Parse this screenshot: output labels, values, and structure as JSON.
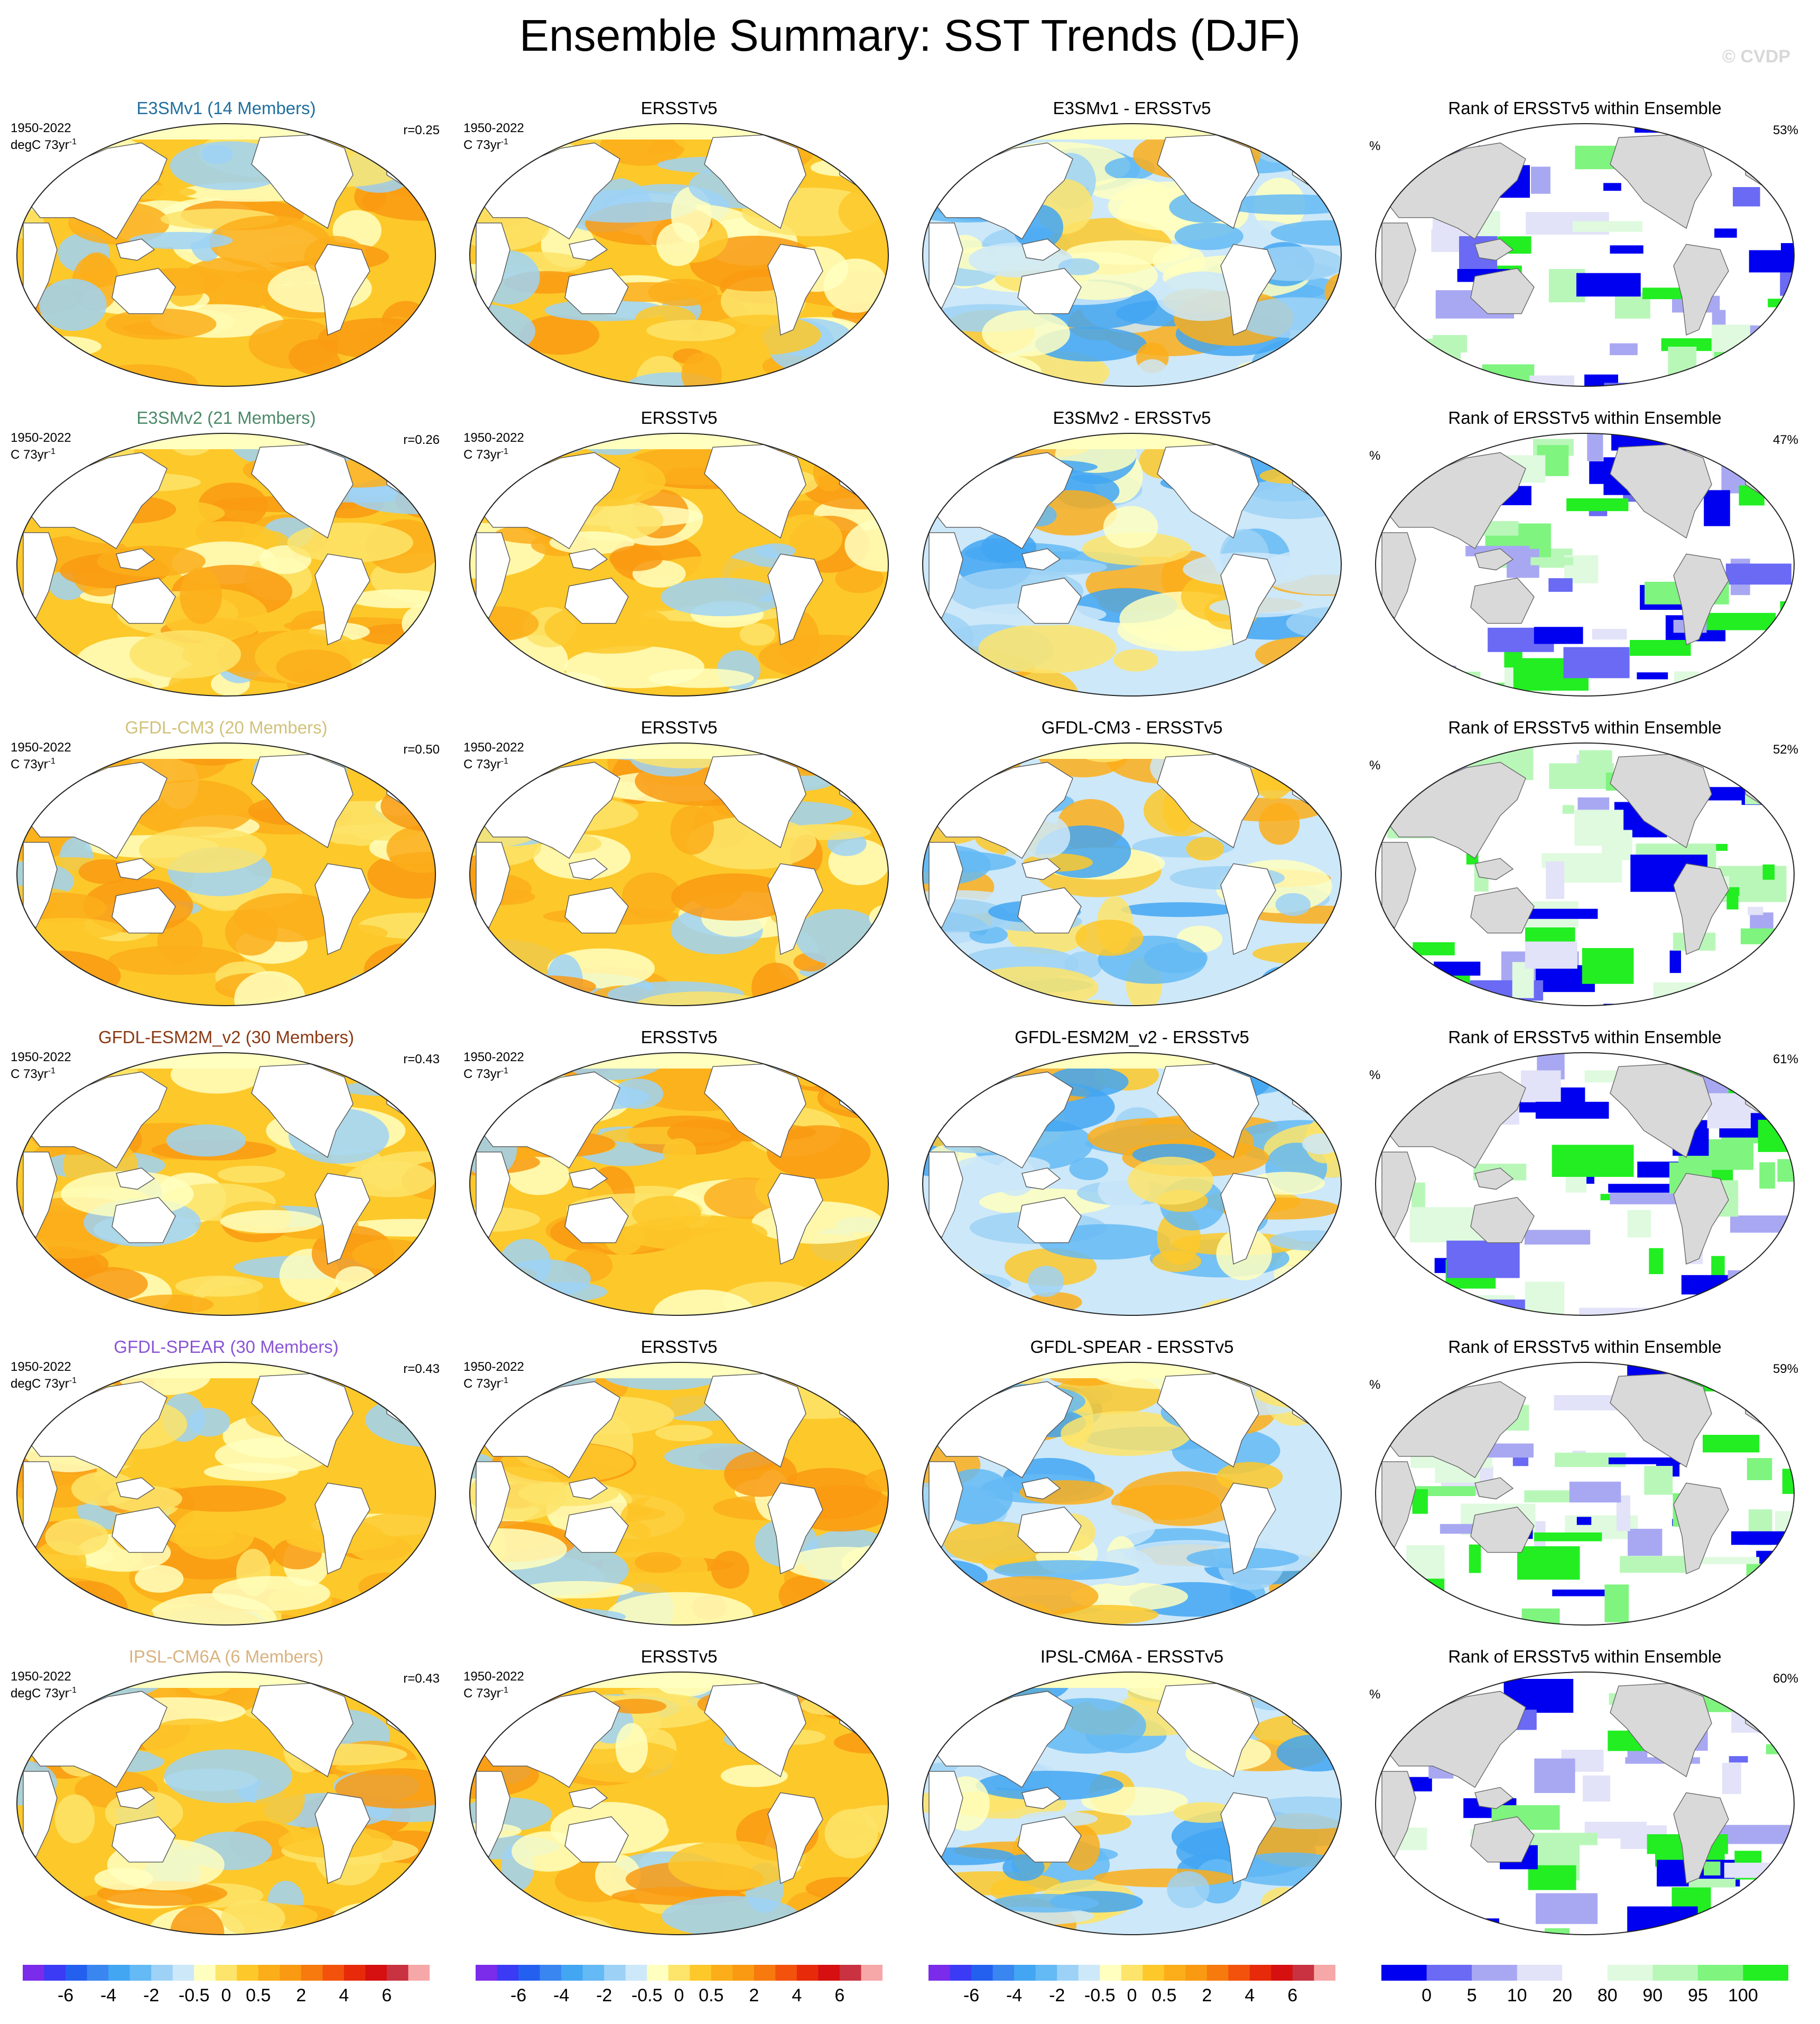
{
  "title": "Ensemble Summary: SST Trends (DJF)",
  "credit": "© CVDP",
  "colors": {
    "diverging": [
      "#7b2bea",
      "#3b3bf5",
      "#2460f0",
      "#3a86f0",
      "#42a6f2",
      "#64baf4",
      "#9dd2f6",
      "#cde8f9",
      "#ffffc0",
      "#fde46a",
      "#fdc82a",
      "#fbae1a",
      "#f99a12",
      "#f67a0e",
      "#f2520c",
      "#e62a0a",
      "#d61010",
      "#c93240",
      "#f6a7a7"
    ],
    "rank": [
      "#0000f0",
      "#6a6af5",
      "#a8a8f2",
      "#e2e2f8",
      "#ffffff",
      "#dffadf",
      "#b9f7b9",
      "#7ff47f",
      "#22ee22"
    ],
    "land": "#d9d9d9"
  },
  "colorbars": [
    {
      "labels": [
        "-6",
        "-4",
        "-2",
        "-0.5",
        "0",
        "0.5",
        "2",
        "4",
        "6"
      ]
    },
    {
      "labels": [
        "-6",
        "-4",
        "-2",
        "-0.5",
        "0",
        "0.5",
        "2",
        "4",
        "6"
      ]
    },
    {
      "labels": [
        "-6",
        "-4",
        "-2",
        "-0.5",
        "0",
        "0.5",
        "2",
        "4",
        "6"
      ]
    },
    {
      "labels": [
        "0",
        "5",
        "10",
        "20",
        "80",
        "90",
        "95",
        "100"
      ]
    }
  ],
  "rows": [
    {
      "model_title": "E3SMv1 (14 Members)",
      "model_color": "#1f6fa0",
      "model_period": "1950-2022",
      "model_units": "degC 73yr",
      "r": "r=0.25",
      "obs_title": "ERSSTv5",
      "obs_period": "1950-2022",
      "obs_units": "C 73yr",
      "diff_title": "E3SMv1 - ERSSTv5",
      "rank_title": "Rank of ERSSTv5 within Ensemble",
      "rank_pct_symbol": "%",
      "rank_value": "53%"
    },
    {
      "model_title": "E3SMv2 (21 Members)",
      "model_color": "#4c8a68",
      "model_period": "1950-2022",
      "model_units": "C 73yr",
      "r": "r=0.26",
      "obs_title": "ERSSTv5",
      "obs_period": "1950-2022",
      "obs_units": "C 73yr",
      "diff_title": "E3SMv2 - ERSSTv5",
      "rank_title": "Rank of ERSSTv5 within Ensemble",
      "rank_pct_symbol": "%",
      "rank_value": "47%"
    },
    {
      "model_title": "GFDL-CM3 (20 Members)",
      "model_color": "#d2c27a",
      "model_period": "1950-2022",
      "model_units": "C 73yr",
      "r": "r=0.50",
      "obs_title": "ERSSTv5",
      "obs_period": "1950-2022",
      "obs_units": "C 73yr",
      "diff_title": "GFDL-CM3 - ERSSTv5",
      "rank_title": "Rank of ERSSTv5 within Ensemble",
      "rank_pct_symbol": "%",
      "rank_value": "52%"
    },
    {
      "model_title": "GFDL-ESM2M_v2 (30 Members)",
      "model_color": "#8b3a14",
      "model_period": "1950-2022",
      "model_units": "C 73yr",
      "r": "r=0.43",
      "obs_title": "ERSSTv5",
      "obs_period": "1950-2022",
      "obs_units": "C 73yr",
      "diff_title": "GFDL-ESM2M_v2 - ERSSTv5",
      "rank_title": "Rank of ERSSTv5 within Ensemble",
      "rank_pct_symbol": "%",
      "rank_value": "61%"
    },
    {
      "model_title": "GFDL-SPEAR (30 Members)",
      "model_color": "#8a55d6",
      "model_period": "1950-2022",
      "model_units": "degC 73yr",
      "r": "r=0.43",
      "obs_title": "ERSSTv5",
      "obs_period": "1950-2022",
      "obs_units": "C 73yr",
      "diff_title": "GFDL-SPEAR - ERSSTv5",
      "rank_title": "Rank of ERSSTv5 within Ensemble",
      "rank_pct_symbol": "%",
      "rank_value": "59%"
    },
    {
      "model_title": "IPSL-CM6A (6 Members)",
      "model_color": "#d9b27e",
      "model_period": "1950-2022",
      "model_units": "degC 73yr",
      "r": "r=0.43",
      "obs_title": "ERSSTv5",
      "obs_period": "1950-2022",
      "obs_units": "C 73yr",
      "diff_title": "IPSL-CM6A - ERSSTv5",
      "rank_title": "Rank of ERSSTv5 within Ensemble",
      "rank_pct_symbol": "%",
      "rank_value": "60%"
    }
  ]
}
